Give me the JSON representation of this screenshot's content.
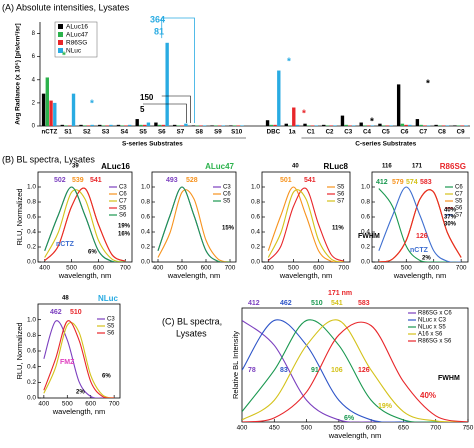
{
  "panel_titles": [
    "(A) Absolute intensities, Lysates",
    "(B) BL spectra, Lysates",
    "(C) BL spectra,",
    "Lysates"
  ],
  "chart_data": [
    {
      "type": "bar",
      "ylabel": "Avg Radiance (x 10⁵) [p/s/cm²/sr]",
      "categories": [
        "nCTZ",
        "S1",
        "S2",
        "S3",
        "S4",
        "S5",
        "S6",
        "S7",
        "S8",
        "S9",
        "S10",
        "DBC",
        "1a",
        "C1",
        "C2",
        "C3",
        "C4",
        "C5",
        "C6",
        "C7",
        "C8",
        "C9"
      ],
      "group_labels": [
        "S-series Substrates",
        "C-series Substrates"
      ],
      "series": [
        {
          "name": "ALuc16",
          "color": "#000000",
          "values": [
            2.8,
            0.1,
            0.1,
            0.1,
            0.1,
            0.6,
            0.3,
            0.1,
            0.05,
            0.05,
            0.05,
            0.5,
            0.2,
            0.2,
            0.1,
            0.9,
            0.3,
            0.2,
            3.6,
            0.6,
            0.1,
            0.05
          ]
        },
        {
          "name": "ALuc47",
          "color": "#2bb24c",
          "values": [
            4.2,
            0.05,
            0.05,
            0.05,
            0.05,
            0.1,
            0.1,
            0.05,
            0.05,
            0.05,
            0.05,
            0.1,
            0.05,
            0.05,
            0.05,
            0.1,
            0.05,
            0.05,
            0.2,
            0.1,
            0.05,
            0.05
          ]
        },
        {
          "name": "R86SG",
          "color": "#e8262a",
          "values": [
            2.2,
            0.05,
            0.05,
            0.05,
            0.05,
            0.1,
            0.1,
            0.05,
            0.05,
            0.05,
            0.05,
            0.1,
            1.6,
            0.05,
            0.05,
            0.05,
            0.05,
            0.05,
            0.1,
            0.05,
            0.05,
            0.05
          ]
        },
        {
          "name": "NLuc",
          "color": "#29abe2",
          "values": [
            2.0,
            2.8,
            0.1,
            0.1,
            0.1,
            0.3,
            7.2,
            0.2,
            0.05,
            0.05,
            0.05,
            4.8,
            0.1,
            0.05,
            0.05,
            0.05,
            0.05,
            0.05,
            0.1,
            0.05,
            0.05,
            0.05
          ]
        }
      ],
      "ylim": [
        0,
        9
      ],
      "yticks": [
        0,
        2,
        4,
        6,
        8
      ],
      "legend": "top-left",
      "annotations": [
        "364",
        "81",
        "150",
        "5",
        "*",
        "*",
        "*",
        "*",
        "*",
        "*"
      ]
    },
    {
      "type": "line",
      "title": "ALuc16",
      "title_color": "#000000",
      "x": [
        400,
        450,
        500,
        550,
        600,
        650,
        700
      ],
      "series": [
        {
          "name": "C3",
          "color": "#7b3fbf",
          "values": [
            0.15,
            0.62,
            1.0,
            0.62,
            0.15,
            0.01,
            0
          ]
        },
        {
          "name": "C6",
          "color": "#f7931e",
          "values": [
            0.02,
            0.21,
            0.74,
            0.98,
            0.5,
            0.1,
            0.01
          ]
        },
        {
          "name": "C7",
          "color": "#d4c21a",
          "values": [
            0.06,
            0.39,
            0.93,
            0.84,
            0.29,
            0.04,
            0
          ]
        },
        {
          "name": "S5",
          "color": "#e8262a",
          "values": [
            0.02,
            0.21,
            0.74,
            0.98,
            0.5,
            0.1,
            0.01
          ]
        },
        {
          "name": "S6",
          "color": "#1a9850",
          "values": [
            0.15,
            0.62,
            1.0,
            0.62,
            0.15,
            0.01,
            0
          ]
        }
      ],
      "xlim": [
        375,
        725
      ],
      "ylim": [
        0,
        1.2
      ],
      "xticks": [
        400,
        500,
        600,
        700
      ],
      "yticks": [
        {
          "value": 0,
          "label": "0.0"
        },
        0.2,
        0.4,
        0.6,
        0.8,
        {
          "value": 1,
          "label": "1.0"
        }
      ],
      "xlabel": "wavelength, nm",
      "ylabel": "RLU, Normalized",
      "legend": "top-right",
      "annotations": [
        "502",
        "539",
        "541",
        "39",
        "19%",
        "16%",
        "6%",
        "nCTZ"
      ]
    },
    {
      "type": "line",
      "title": "ALuc47",
      "title_color": "#2bb24c",
      "x": [
        400,
        450,
        500,
        550,
        600,
        650,
        700
      ],
      "series": [
        {
          "name": "C3",
          "color": "#7b3fbf",
          "values": [
            0.15,
            0.62,
            1.0,
            0.62,
            0.15,
            0.01,
            0
          ]
        },
        {
          "name": "C6",
          "color": "#f7931e",
          "values": [
            0.06,
            0.39,
            0.93,
            0.84,
            0.29,
            0.04,
            0
          ]
        },
        {
          "name": "S5",
          "color": "#1a9850",
          "values": [
            0.15,
            0.62,
            1.0,
            0.62,
            0.15,
            0.01,
            0
          ]
        }
      ],
      "xlim": [
        375,
        725
      ],
      "ylim": [
        0,
        1.2
      ],
      "xticks": [
        400,
        500,
        600,
        700
      ],
      "yticks": [
        {
          "value": 0,
          "label": "0.0"
        },
        0.2,
        0.4,
        0.6,
        0.8,
        {
          "value": 1,
          "label": "1.0"
        }
      ],
      "xlabel": "wavelength, nm",
      "legend": "top-right",
      "annotations": [
        "493",
        "528",
        "15%"
      ]
    },
    {
      "type": "line",
      "title": "RLuc8",
      "title_color": "#000000",
      "x": [
        400,
        450,
        500,
        550,
        600,
        650,
        700
      ],
      "series": [
        {
          "name": "S5",
          "color": "#f7931e",
          "values": [
            0.15,
            0.62,
            1.0,
            0.62,
            0.15,
            0.01,
            0
          ]
        },
        {
          "name": "S6",
          "color": "#e8262a",
          "values": [
            0.02,
            0.21,
            0.74,
            0.98,
            0.5,
            0.1,
            0.01
          ]
        },
        {
          "name": "S7",
          "color": "#d4c21a",
          "values": [
            0.06,
            0.39,
            0.93,
            0.84,
            0.29,
            0.04,
            0
          ]
        }
      ],
      "xlim": [
        375,
        725
      ],
      "ylim": [
        0,
        1.2
      ],
      "xticks": [
        400,
        500,
        600,
        700
      ],
      "yticks": [
        {
          "value": 0,
          "label": "0.0"
        },
        0.2,
        0.4,
        0.6,
        0.8,
        {
          "value": 1,
          "label": "1.0"
        }
      ],
      "xlabel": "wavelength, nm",
      "legend": "top-right",
      "annotations": [
        "40",
        "501",
        "541",
        "11%"
      ]
    },
    {
      "type": "line",
      "title": "R86SG",
      "title_color": "#e8262a",
      "x": [
        400,
        450,
        500,
        550,
        600,
        650,
        700
      ],
      "series": [
        {
          "name": "C6",
          "color": "#1a9850",
          "values": [
            0.98,
            0.74,
            0.21,
            0.02,
            0,
            0,
            0
          ]
        },
        {
          "name": "C7",
          "color": "#d4c21a",
          "values": [
            0,
            0.04,
            0.29,
            0.84,
            0.93,
            0.39,
            0.06
          ]
        },
        {
          "name": "S5",
          "color": "#f7931e",
          "values": [
            0,
            0.04,
            0.29,
            0.84,
            0.93,
            0.39,
            0.06
          ]
        },
        {
          "name": "S6",
          "color": "#e8262a",
          "values": [
            0,
            0.04,
            0.29,
            0.84,
            0.93,
            0.39,
            0.06
          ]
        },
        {
          "name": "S7",
          "color": "#3f6fd0",
          "values": [
            0.15,
            0.62,
            1.0,
            0.62,
            0.15,
            0.01,
            0
          ]
        }
      ],
      "xlim": [
        375,
        725
      ],
      "ylim": [
        0,
        1.2
      ],
      "xticks": [
        400,
        500,
        600,
        700
      ],
      "yticks": [
        {
          "value": 0,
          "label": "0.0"
        },
        0.2,
        0.4,
        0.6,
        0.8,
        {
          "value": 1,
          "label": "1.0"
        }
      ],
      "xlabel": "wavelength, nm",
      "legend": "top-right",
      "annotations": [
        "116",
        "171",
        "412",
        "579",
        "574",
        "583",
        "40%",
        "37%",
        "30%",
        "FWHM",
        "126",
        "nCTZ",
        "2%"
      ]
    },
    {
      "type": "line",
      "title": "NLuc",
      "title_color": "#29abe2",
      "x": [
        400,
        450,
        500,
        550,
        600,
        650,
        700
      ],
      "series": [
        {
          "name": "C3",
          "color": "#7b3fbf",
          "values": [
            0.5,
            0.98,
            0.74,
            0.21,
            0.02,
            0,
            0
          ]
        },
        {
          "name": "S5",
          "color": "#d4c21a",
          "values": [
            0.06,
            0.39,
            0.93,
            0.84,
            0.29,
            0.04,
            0
          ]
        },
        {
          "name": "S6",
          "color": "#e8262a",
          "values": [
            0.1,
            0.5,
            0.98,
            0.74,
            0.21,
            0.02,
            0
          ]
        }
      ],
      "xlim": [
        375,
        725
      ],
      "ylim": [
        0,
        1.2
      ],
      "xticks": [
        400,
        500,
        600,
        700
      ],
      "yticks": [
        {
          "value": 0,
          "label": "0.0"
        },
        0.2,
        0.4,
        0.6,
        0.8,
        {
          "value": 1,
          "label": "1.0"
        }
      ],
      "xlabel": "wavelength, nm",
      "ylabel": "RLU, Normalized",
      "legend": "top-right",
      "annotations": [
        "48",
        "462",
        "510",
        "FMZ",
        "6%",
        "2%"
      ]
    },
    {
      "type": "line",
      "x": [
        400,
        450,
        500,
        550,
        600,
        650,
        700,
        750
      ],
      "series": [
        {
          "name": "R86SG x C6",
          "color": "#7b3fbf",
          "values": [
            0.98,
            0.74,
            0.21,
            0.02,
            0,
            0,
            0,
            0
          ]
        },
        {
          "name": "NLuc x C3",
          "color": "#2e55c8",
          "values": [
            0.5,
            0.98,
            0.74,
            0.21,
            0.02,
            0,
            0,
            0
          ]
        },
        {
          "name": "NLuc x S5",
          "color": "#1a9850",
          "values": [
            0.1,
            0.5,
            0.98,
            0.74,
            0.21,
            0.02,
            0,
            0
          ]
        },
        {
          "name": "A16 x S6",
          "color": "#d4c21a",
          "values": [
            0.02,
            0.21,
            0.74,
            0.98,
            0.5,
            0.1,
            0.01,
            0
          ]
        },
        {
          "name": "R86SG x S6",
          "color": "#e8262a",
          "values": [
            0,
            0.04,
            0.29,
            0.84,
            0.93,
            0.39,
            0.06,
            0
          ]
        }
      ],
      "xlim": [
        400,
        750
      ],
      "ylim": [
        0,
        1.1
      ],
      "xticks": [
        400,
        450,
        500,
        550,
        600,
        650,
        700,
        750
      ],
      "xlabel": "wavelength, nm",
      "ylabel": "Relative BL Intensity",
      "legend": "top-right",
      "annotations": [
        "412",
        "462",
        "510",
        "541",
        "583",
        "171 nm",
        "78",
        "83",
        "91",
        "106",
        "126",
        "FWHM",
        "40%",
        "19%",
        "6%"
      ]
    }
  ]
}
